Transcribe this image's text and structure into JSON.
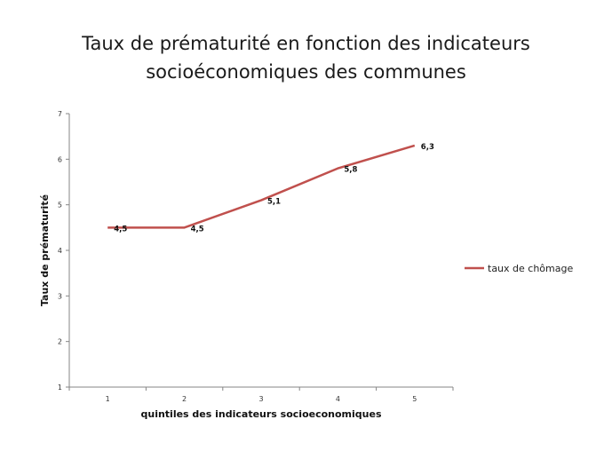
{
  "chart_data": {
    "type": "line",
    "title_lines": [
      "Taux de prématurité en fonction des indicateurs",
      "socioéconomiques des communes"
    ],
    "xlabel": "quintiles des indicateurs socioeconomiques",
    "ylabel": "Taux de prématurité",
    "x": [
      "1",
      "2",
      "3",
      "4",
      "5"
    ],
    "y_ticks": [
      "1",
      "2",
      "3",
      "4",
      "5",
      "6",
      "7"
    ],
    "ylim": [
      1,
      7
    ],
    "grid": false,
    "legend_position": "right",
    "series": [
      {
        "name": "taux de chômage",
        "color": "#C0504D",
        "values": [
          4.5,
          4.5,
          5.1,
          5.8,
          6.3
        ],
        "labels": [
          "4,5",
          "4,5",
          "5,1",
          "5,8",
          "6,3"
        ]
      }
    ]
  }
}
